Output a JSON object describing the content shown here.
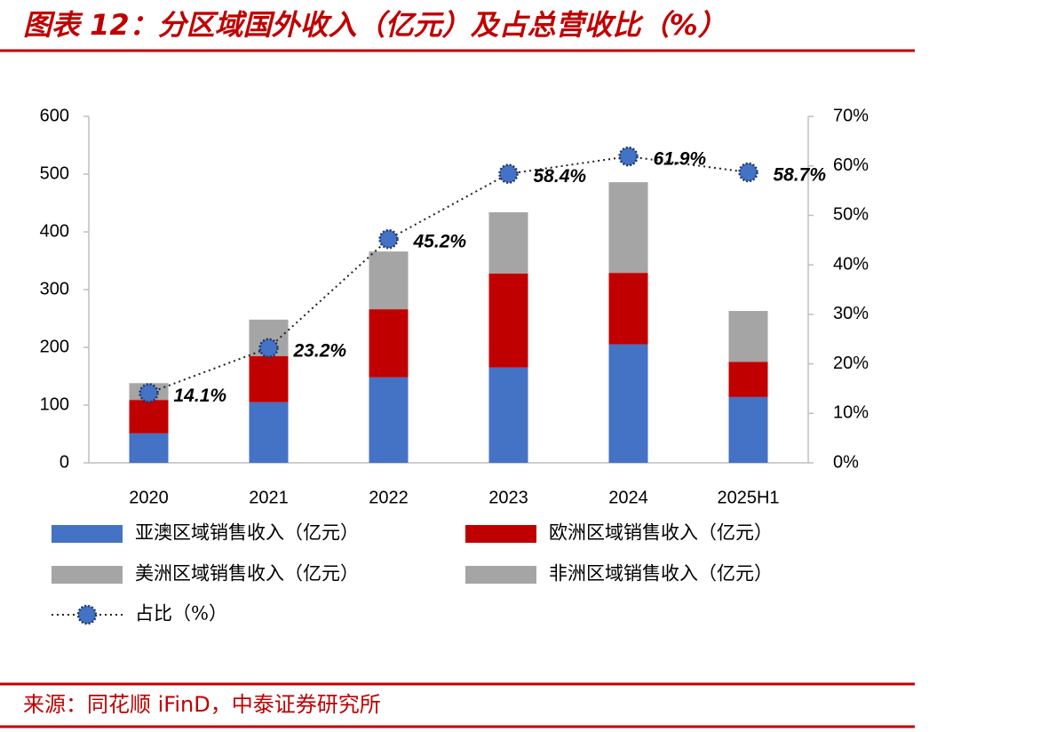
{
  "chart_data": {
    "type": "stacked-bar-line",
    "title": "图表 12：分区域国外收入（亿元）及占总营收比（%）",
    "source": "来源：同花顺 iFinD，中泰证券研究所",
    "categories": [
      "2020",
      "2021",
      "2022",
      "2023",
      "2024",
      "2025H1"
    ],
    "series": [
      {
        "name": "亚澳区域销售收入（亿元）",
        "color": "#4472c4",
        "values": [
          51,
          105,
          148,
          165,
          205,
          114
        ]
      },
      {
        "name": "欧洲区域销售收入（亿元）",
        "color": "#c00000",
        "values": [
          58,
          80,
          118,
          163,
          124,
          61
        ]
      },
      {
        "name": "美洲区域销售收入（亿元）",
        "color": "#a5a5a5",
        "values": [
          29,
          63,
          100,
          106,
          157,
          88
        ]
      },
      {
        "name": "非洲区域销售收入（亿元）",
        "color": "#a5a5a5",
        "values": [
          0,
          0,
          0,
          0,
          0,
          0
        ]
      },
      {
        "name": "占比（%）",
        "color": "#4472c4",
        "axis": "y2",
        "type": "line",
        "values": [
          14.1,
          23.2,
          45.2,
          58.4,
          61.9,
          58.7
        ],
        "value_labels": [
          "14.1%",
          "23.2%",
          "45.2%",
          "58.4%",
          "61.9%",
          "58.7%"
        ]
      }
    ],
    "ylim": [
      0,
      600
    ],
    "yticks": [
      0,
      100,
      200,
      300,
      400,
      500,
      600
    ],
    "y2lim": [
      0,
      70
    ],
    "y2ticks": [
      {
        "value": 0,
        "label": "0%"
      },
      {
        "value": 10,
        "label": "10%"
      },
      {
        "value": 20,
        "label": "20%"
      },
      {
        "value": 30,
        "label": "30%"
      },
      {
        "value": 40,
        "label": "40%"
      },
      {
        "value": 50,
        "label": "50%"
      },
      {
        "value": 60,
        "label": "60%"
      },
      {
        "value": 70,
        "label": "70%"
      }
    ]
  }
}
